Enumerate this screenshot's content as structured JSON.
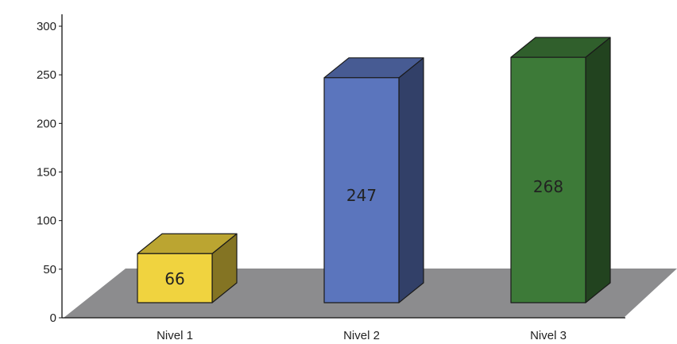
{
  "chart_data": {
    "type": "bar",
    "categories": [
      "Nivel 1",
      "Nivel 2",
      "Nivel 3"
    ],
    "values": [
      66,
      247,
      268
    ],
    "data_labels": [
      "66",
      "247",
      "268"
    ],
    "ylim": [
      0,
      300
    ],
    "yticks": [
      0,
      50,
      100,
      150,
      200,
      250,
      300
    ],
    "ytick_labels": [
      "0",
      "50",
      "100",
      "150",
      "200",
      "250",
      "300"
    ],
    "title": "",
    "xlabel": "",
    "ylabel": "",
    "grid": false,
    "style": "3d-columns",
    "colors": {
      "bars": [
        "#f0d33f",
        "#5b75bd",
        "#3d7a38"
      ],
      "floor": "#8c8c8e"
    }
  }
}
